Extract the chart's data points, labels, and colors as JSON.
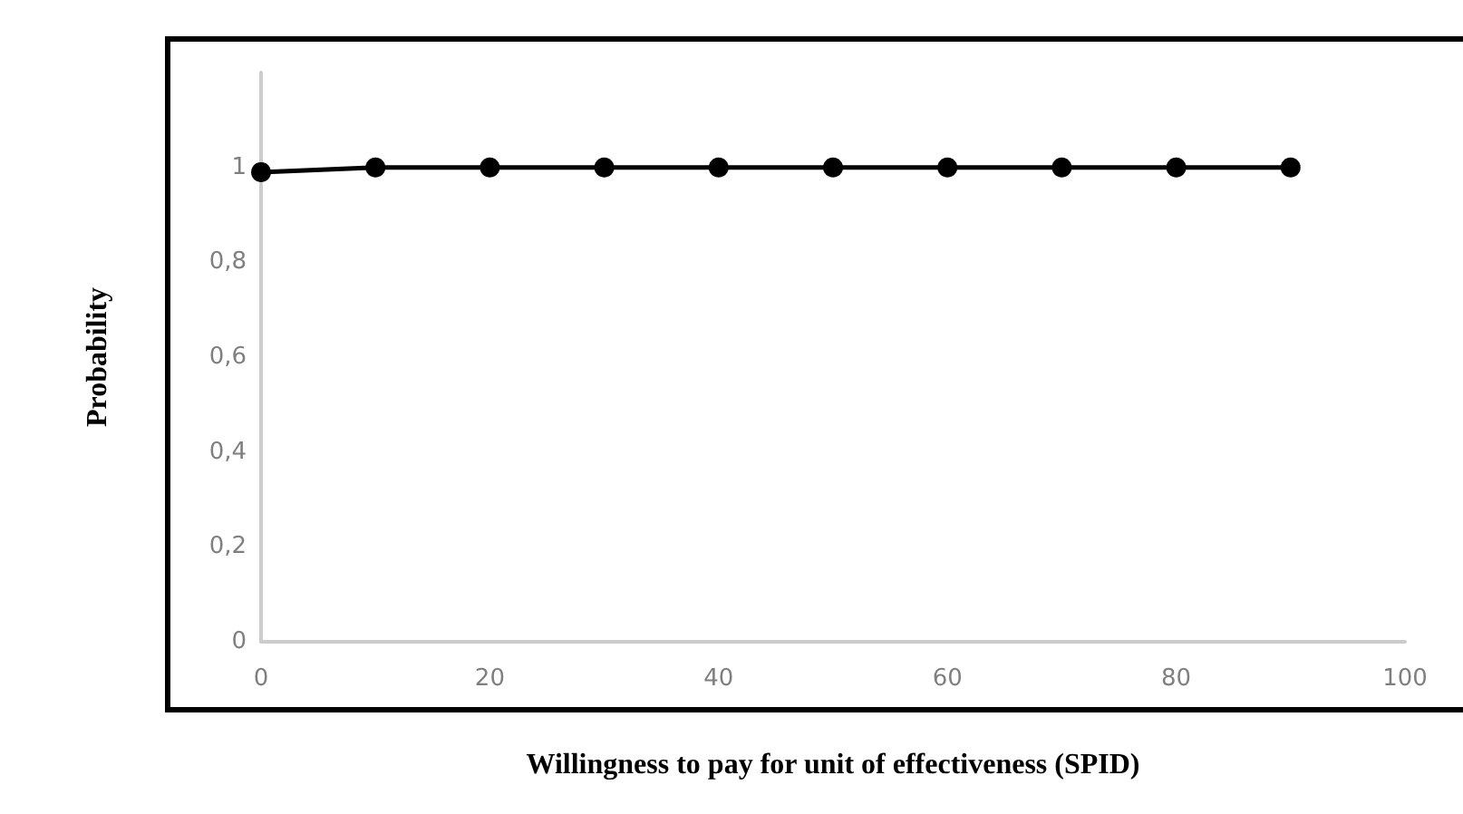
{
  "chart_data": {
    "type": "line",
    "xlabel": "Willingness to pay for unit of effectiveness (SPID)",
    "ylabel": "Probability",
    "x": [
      0,
      10,
      20,
      30,
      40,
      50,
      60,
      70,
      80,
      90
    ],
    "series": [
      {
        "color": "#000000",
        "values": [
          0.99,
          1,
          1,
          1,
          1,
          1,
          1,
          1,
          1,
          1
        ]
      }
    ],
    "xlim": [
      0,
      100
    ],
    "xticks": [
      0,
      20,
      40,
      60,
      80,
      100
    ],
    "ylim": [
      0,
      1.2
    ],
    "yticks": [
      0,
      {
        "value": 0.2,
        "label": "0,2"
      },
      {
        "value": 0.4,
        "label": "0,4"
      },
      {
        "value": 0.6,
        "label": "0,6"
      },
      {
        "value": 0.8,
        "label": "0,8"
      },
      1
    ],
    "grid": false,
    "marker": "circle",
    "line_style": "solid"
  }
}
